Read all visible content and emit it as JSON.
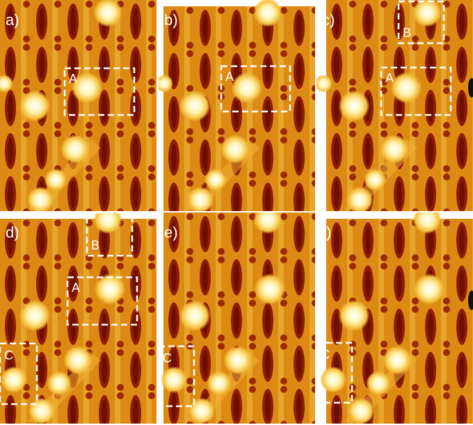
{
  "panels": [
    {
      "label": "a)",
      "boxes": [
        {
          "label": "A"
        }
      ]
    },
    {
      "label": "b)",
      "boxes": [
        {
          "label": "A"
        }
      ]
    },
    {
      "label": "c)",
      "boxes": [
        {
          "label": "B"
        },
        {
          "label": "A"
        }
      ]
    },
    {
      "label": "d)",
      "boxes": [
        {
          "label": "B"
        },
        {
          "label": "A"
        },
        {
          "label": "C"
        }
      ]
    },
    {
      "label": "e)",
      "boxes": [
        {
          "label": "C"
        }
      ]
    },
    {
      "label": "f)",
      "boxes": [
        {
          "label": "C"
        }
      ]
    }
  ]
}
